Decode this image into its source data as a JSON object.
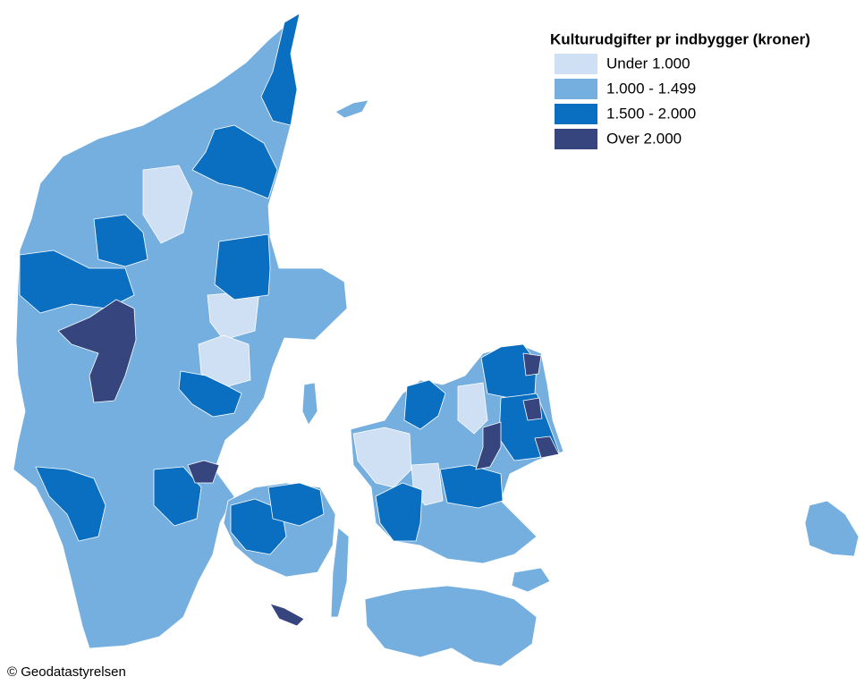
{
  "legend": {
    "title": "Kulturudgifter pr indbygger (kroner)",
    "items": [
      {
        "label": "Under 1.000",
        "color": "#cfe0f5"
      },
      {
        "label": "1.000 - 1.499",
        "color": "#74afe0"
      },
      {
        "label": "1.500 - 2.000",
        "color": "#0a6fc0"
      },
      {
        "label": "Over 2.000",
        "color": "#36457d"
      }
    ]
  },
  "credit": "© Geodatastyrelsen"
}
